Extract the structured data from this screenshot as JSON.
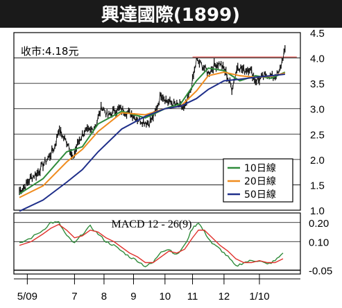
{
  "header": {
    "title": "興達國際(1899)",
    "bg_color": "#1a1a1a",
    "text_color": "#ffffff"
  },
  "legend": [
    {
      "label": "10日線",
      "color": "#2e8b3a"
    },
    {
      "label": "20日線",
      "color": "#f08c1e"
    },
    {
      "label": "50日線",
      "color": "#1f2f8a"
    }
  ],
  "chart_data": [
    {
      "type": "line",
      "annotation": "收市:4.18元",
      "ylim": [
        1.0,
        4.5
      ],
      "yticks": [
        "1.0",
        "1.5",
        "2.0",
        "2.5",
        "3.0",
        "3.5",
        "4.0",
        "4.5"
      ],
      "grid": true,
      "resistance_level": 4.02,
      "resistance_color": "#d9534f",
      "x_tick_labels": [
        "5/09",
        "7",
        "8",
        "9",
        "10",
        "11",
        "12",
        "1/10"
      ],
      "price_path": [
        [
          0,
          1.38
        ],
        [
          1.5,
          1.48
        ],
        [
          3,
          1.65
        ],
        [
          4.5,
          1.72
        ],
        [
          6,
          1.9
        ],
        [
          7.5,
          2.05
        ],
        [
          9,
          2.25
        ],
        [
          10,
          2.6
        ],
        [
          11,
          2.45
        ],
        [
          12.5,
          2.3
        ],
        [
          13.5,
          2.0
        ],
        [
          15,
          2.35
        ],
        [
          16.5,
          2.55
        ],
        [
          18,
          2.55
        ],
        [
          19.5,
          2.7
        ],
        [
          21,
          3.05
        ],
        [
          22.5,
          2.85
        ],
        [
          24,
          2.95
        ],
        [
          25.5,
          3.0
        ],
        [
          27,
          2.95
        ],
        [
          28.5,
          2.9
        ],
        [
          30,
          2.8
        ],
        [
          31.5,
          2.75
        ],
        [
          33,
          2.72
        ],
        [
          34.5,
          2.9
        ],
        [
          36,
          3.3
        ],
        [
          37.5,
          3.15
        ],
        [
          39,
          3.1
        ],
        [
          40.5,
          3.05
        ],
        [
          42,
          3.0
        ],
        [
          43.5,
          3.35
        ],
        [
          45,
          3.95
        ],
        [
          46.5,
          3.85
        ],
        [
          48,
          3.7
        ],
        [
          49.5,
          3.85
        ],
        [
          51,
          3.9
        ],
        [
          52.5,
          3.7
        ],
        [
          54,
          3.4
        ],
        [
          55.5,
          3.85
        ],
        [
          57,
          3.75
        ],
        [
          58.5,
          3.8
        ],
        [
          60,
          3.55
        ],
        [
          61.5,
          3.6
        ],
        [
          63,
          3.68
        ],
        [
          64.5,
          3.62
        ],
        [
          66,
          3.7
        ],
        [
          67.5,
          4.18
        ]
      ],
      "ma_series": [
        {
          "name": "10日線",
          "values": [
            [
              0,
              1.32
            ],
            [
              6,
              1.62
            ],
            [
              12,
              2.15
            ],
            [
              16,
              2.25
            ],
            [
              20,
              2.7
            ],
            [
              26,
              2.95
            ],
            [
              32,
              2.82
            ],
            [
              37,
              3.0
            ],
            [
              41,
              3.1
            ],
            [
              45,
              3.55
            ],
            [
              48,
              3.8
            ],
            [
              52,
              3.75
            ],
            [
              56,
              3.55
            ],
            [
              60,
              3.65
            ],
            [
              64,
              3.6
            ],
            [
              67.5,
              3.72
            ]
          ]
        },
        {
          "name": "20日線",
          "values": [
            [
              0,
              1.25
            ],
            [
              6,
              1.48
            ],
            [
              12,
              1.95
            ],
            [
              16,
              2.2
            ],
            [
              20,
              2.55
            ],
            [
              26,
              2.92
            ],
            [
              32,
              2.88
            ],
            [
              37,
              3.0
            ],
            [
              41,
              3.05
            ],
            [
              45,
              3.35
            ],
            [
              48,
              3.65
            ],
            [
              52,
              3.72
            ],
            [
              56,
              3.65
            ],
            [
              60,
              3.62
            ],
            [
              64,
              3.64
            ],
            [
              67.5,
              3.7
            ]
          ]
        },
        {
          "name": "50日線",
          "values": [
            [
              0,
              0.98
            ],
            [
              6,
              1.2
            ],
            [
              12,
              1.55
            ],
            [
              16,
              1.8
            ],
            [
              20,
              2.15
            ],
            [
              26,
              2.6
            ],
            [
              32,
              2.85
            ],
            [
              37,
              3.0
            ],
            [
              41,
              3.05
            ],
            [
              45,
              3.2
            ],
            [
              48,
              3.38
            ],
            [
              52,
              3.55
            ],
            [
              56,
              3.58
            ],
            [
              60,
              3.62
            ],
            [
              64,
              3.65
            ],
            [
              67.5,
              3.68
            ]
          ]
        }
      ]
    },
    {
      "type": "line",
      "title": "MACD 12 - 26(9)",
      "ylim": [
        -0.07,
        0.25
      ],
      "yticks": [
        "0.20",
        "0.10",
        "-0.05"
      ],
      "ytick_values": [
        0.2,
        0.1,
        -0.05
      ],
      "grid": true,
      "series": [
        {
          "name": "MACD",
          "color": "#2e8b3a",
          "values": [
            [
              0,
              0.09
            ],
            [
              3,
              0.12
            ],
            [
              6,
              0.16
            ],
            [
              8,
              0.2
            ],
            [
              10,
              0.2
            ],
            [
              12,
              0.13
            ],
            [
              14,
              0.09
            ],
            [
              16,
              0.14
            ],
            [
              18,
              0.18
            ],
            [
              20,
              0.14
            ],
            [
              22,
              0.1
            ],
            [
              24,
              0.08
            ],
            [
              26,
              0.05
            ],
            [
              28,
              0.02
            ],
            [
              30,
              0.0
            ],
            [
              32,
              -0.03
            ],
            [
              34,
              -0.01
            ],
            [
              36,
              0.05
            ],
            [
              38,
              0.06
            ],
            [
              40,
              0.03
            ],
            [
              42,
              0.08
            ],
            [
              44,
              0.17
            ],
            [
              45.5,
              0.2
            ],
            [
              47,
              0.15
            ],
            [
              49,
              0.09
            ],
            [
              51,
              0.06
            ],
            [
              53,
              0.02
            ],
            [
              55,
              -0.03
            ],
            [
              57,
              -0.01
            ],
            [
              59,
              0.0
            ],
            [
              61,
              0.0
            ],
            [
              63,
              -0.02
            ],
            [
              65,
              0.0
            ],
            [
              67,
              0.04
            ]
          ]
        },
        {
          "name": "Signal",
          "color": "#e0312c",
          "values": [
            [
              0,
              0.08
            ],
            [
              3,
              0.1
            ],
            [
              6,
              0.14
            ],
            [
              8,
              0.17
            ],
            [
              10,
              0.19
            ],
            [
              12,
              0.16
            ],
            [
              14,
              0.12
            ],
            [
              16,
              0.13
            ],
            [
              18,
              0.16
            ],
            [
              20,
              0.15
            ],
            [
              22,
              0.12
            ],
            [
              24,
              0.1
            ],
            [
              26,
              0.07
            ],
            [
              28,
              0.04
            ],
            [
              30,
              0.02
            ],
            [
              32,
              -0.01
            ],
            [
              34,
              -0.01
            ],
            [
              36,
              0.02
            ],
            [
              38,
              0.05
            ],
            [
              40,
              0.04
            ],
            [
              42,
              0.06
            ],
            [
              44,
              0.12
            ],
            [
              45.5,
              0.16
            ],
            [
              47,
              0.16
            ],
            [
              49,
              0.12
            ],
            [
              51,
              0.08
            ],
            [
              53,
              0.05
            ],
            [
              55,
              0.01
            ],
            [
              57,
              -0.01
            ],
            [
              59,
              -0.01
            ],
            [
              61,
              0.0
            ],
            [
              63,
              -0.01
            ],
            [
              65,
              -0.01
            ],
            [
              67,
              0.01
            ]
          ]
        }
      ]
    }
  ]
}
